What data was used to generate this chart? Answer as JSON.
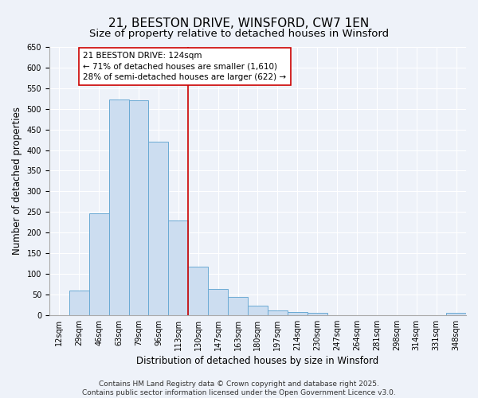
{
  "title": "21, BEESTON DRIVE, WINSFORD, CW7 1EN",
  "subtitle": "Size of property relative to detached houses in Winsford",
  "xlabel": "Distribution of detached houses by size in Winsford",
  "ylabel": "Number of detached properties",
  "bin_labels": [
    "12sqm",
    "29sqm",
    "46sqm",
    "63sqm",
    "79sqm",
    "96sqm",
    "113sqm",
    "130sqm",
    "147sqm",
    "163sqm",
    "180sqm",
    "197sqm",
    "214sqm",
    "230sqm",
    "247sqm",
    "264sqm",
    "281sqm",
    "298sqm",
    "314sqm",
    "331sqm",
    "348sqm"
  ],
  "bin_values": [
    0,
    60,
    247,
    523,
    521,
    420,
    230,
    118,
    63,
    45,
    23,
    12,
    8,
    5,
    0,
    0,
    0,
    0,
    0,
    0,
    5
  ],
  "bar_color": "#ccddf0",
  "bar_edge_color": "#6aaad4",
  "ylim": [
    0,
    650
  ],
  "yticks": [
    0,
    50,
    100,
    150,
    200,
    250,
    300,
    350,
    400,
    450,
    500,
    550,
    600,
    650
  ],
  "vline_x": 7.0,
  "vline_color": "#cc0000",
  "annotation_title": "21 BEESTON DRIVE: 124sqm",
  "annotation_line1": "← 71% of detached houses are smaller (1,610)",
  "annotation_line2": "28% of semi-detached houses are larger (622) →",
  "annotation_box_color": "#ffffff",
  "annotation_box_edge": "#cc0000",
  "bg_color": "#eef2f9",
  "footer1": "Contains HM Land Registry data © Crown copyright and database right 2025.",
  "footer2": "Contains public sector information licensed under the Open Government Licence v3.0.",
  "grid_color": "#ffffff",
  "title_fontsize": 11,
  "subtitle_fontsize": 9.5,
  "axis_label_fontsize": 8.5,
  "tick_fontsize": 7,
  "annotation_fontsize": 7.5,
  "footer_fontsize": 6.5
}
